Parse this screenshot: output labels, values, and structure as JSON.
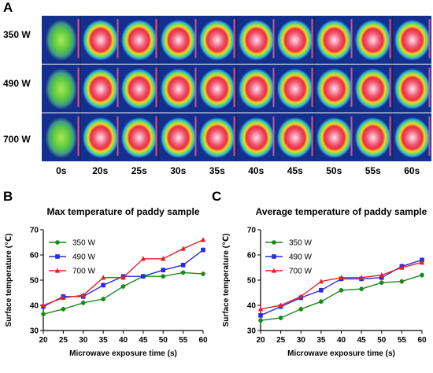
{
  "figure": {
    "panel_a": "A",
    "panel_b": "B",
    "panel_c": "C",
    "row_labels": [
      "350 W",
      "490 W",
      "700 W"
    ],
    "col_labels": [
      "0s",
      "20s",
      "25s",
      "30s",
      "35s",
      "40s",
      "45s",
      "50s",
      "55s",
      "60s"
    ]
  },
  "chart_data": [
    {
      "type": "line",
      "title": "Max temperature of paddy sample",
      "xlabel": "Microwave exposure time (s)",
      "ylabel": "Surface temperature (℃)",
      "x": [
        20,
        25,
        30,
        35,
        40,
        45,
        50,
        55,
        60
      ],
      "xlim": [
        20,
        60
      ],
      "ylim": [
        30,
        70
      ],
      "yticks": [
        30,
        40,
        50,
        60,
        70
      ],
      "legend_position": "top-left",
      "series": [
        {
          "name": "350 W",
          "color": "#1a8a1a",
          "marker": "circle",
          "values": [
            36.5,
            38.5,
            41.0,
            42.5,
            47.5,
            51.5,
            51.5,
            53.0,
            52.5
          ]
        },
        {
          "name": "490 W",
          "color": "#2a2ae0",
          "marker": "square",
          "values": [
            39.5,
            43.5,
            43.5,
            48.0,
            51.5,
            51.5,
            54.0,
            56.0,
            62.0
          ]
        },
        {
          "name": "700 W",
          "color": "#e82020",
          "marker": "triangle",
          "values": [
            40.0,
            43.0,
            44.0,
            51.0,
            51.0,
            58.5,
            58.5,
            62.5,
            66.0
          ]
        }
      ]
    },
    {
      "type": "line",
      "title": "Average temperature of paddy sample",
      "xlabel": "Microwave exposure time (s)",
      "ylabel": "Surface temperature (℃)",
      "x": [
        20,
        25,
        30,
        35,
        40,
        45,
        50,
        55,
        60
      ],
      "xlim": [
        20,
        60
      ],
      "ylim": [
        30,
        70
      ],
      "yticks": [
        30,
        40,
        50,
        60,
        70
      ],
      "legend_position": "top-left",
      "series": [
        {
          "name": "350 W",
          "color": "#1a8a1a",
          "marker": "circle",
          "values": [
            34.0,
            35.0,
            38.5,
            41.5,
            46.0,
            46.5,
            49.0,
            49.5,
            52.0
          ]
        },
        {
          "name": "490 W",
          "color": "#2a2ae0",
          "marker": "square",
          "values": [
            36.0,
            39.5,
            43.0,
            46.0,
            50.5,
            50.5,
            51.0,
            55.5,
            58.0
          ]
        },
        {
          "name": "700 W",
          "color": "#e82020",
          "marker": "triangle",
          "values": [
            38.5,
            40.0,
            43.5,
            49.5,
            51.0,
            51.0,
            52.0,
            55.0,
            57.0
          ]
        }
      ]
    }
  ]
}
